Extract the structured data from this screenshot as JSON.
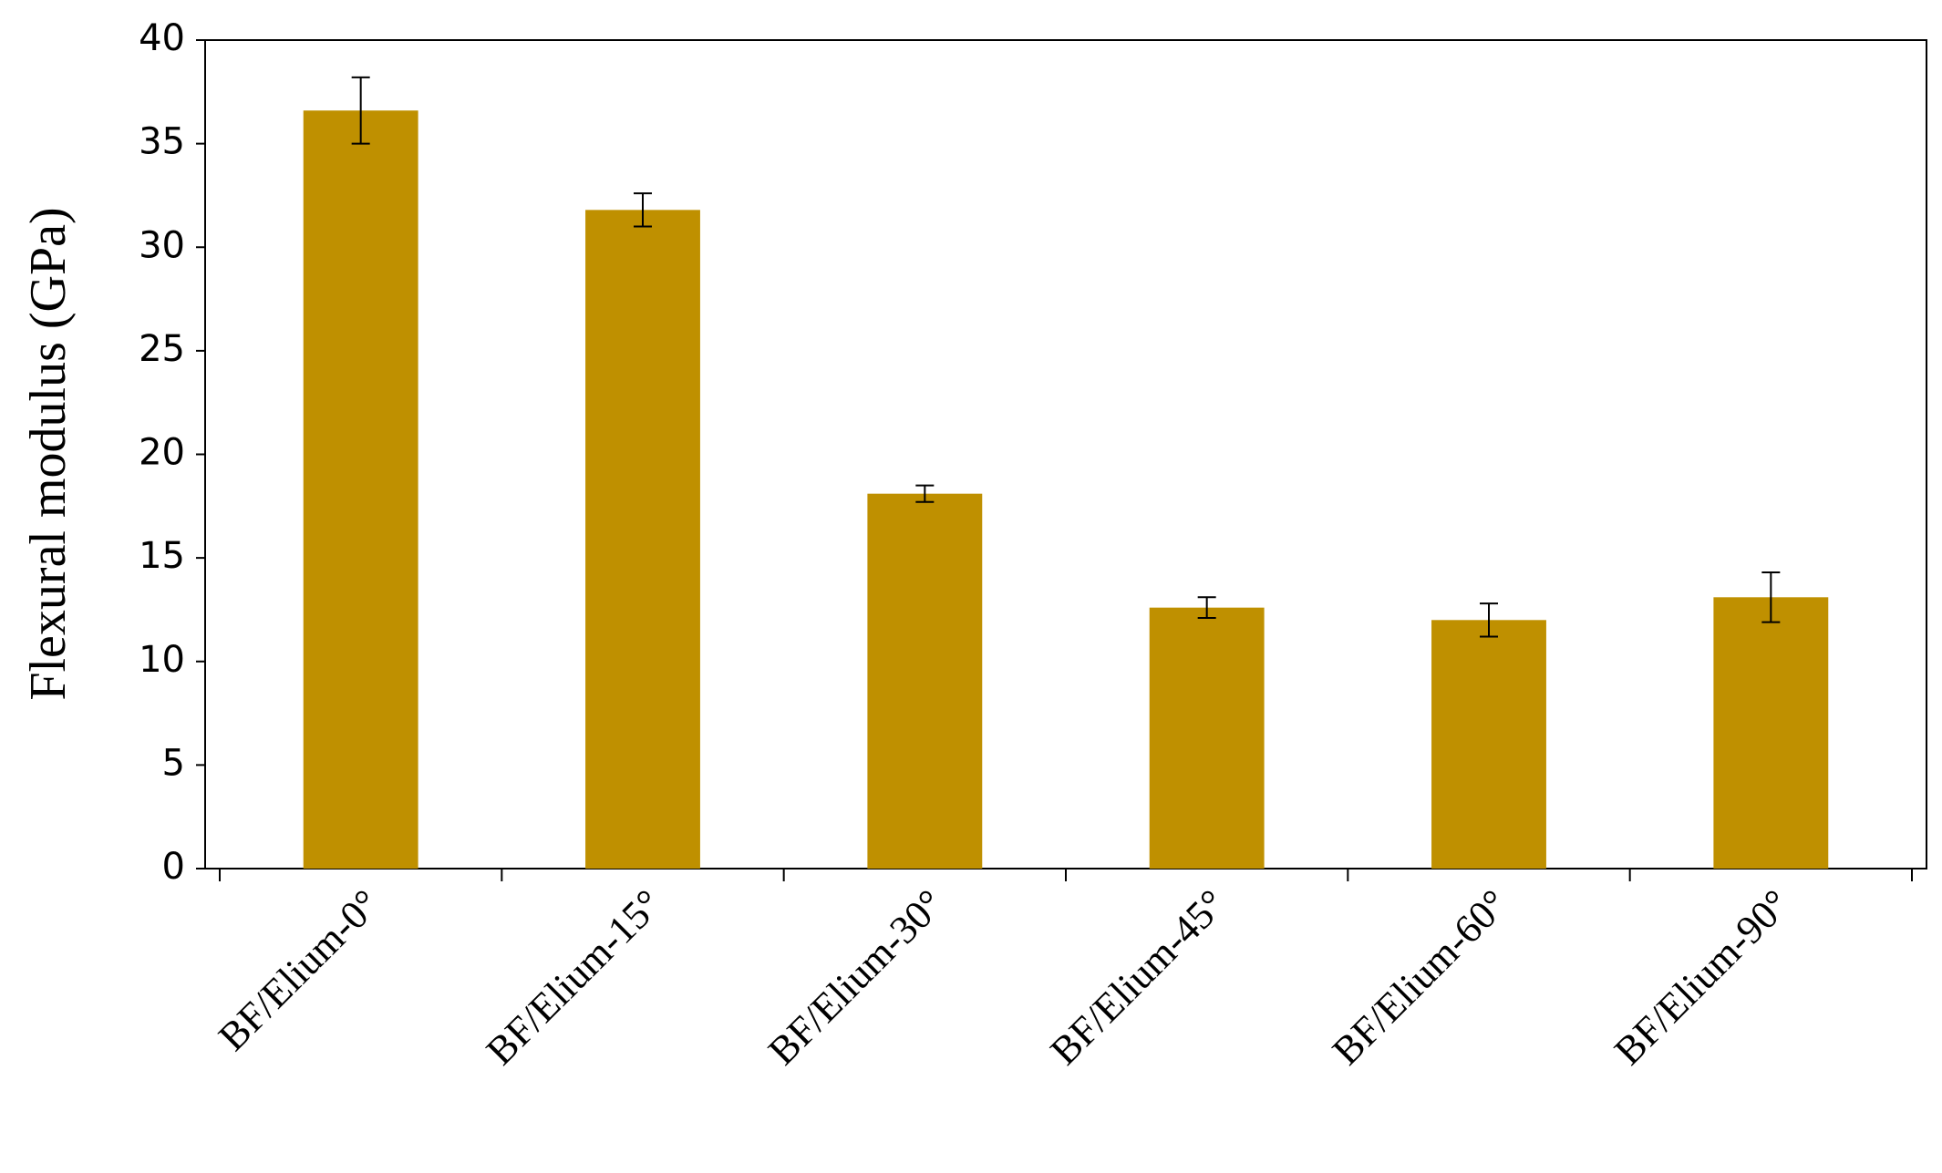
{
  "chart_data": {
    "type": "bar",
    "y_label": "Flexural modulus (GPa)",
    "categories": [
      "BF/Elium-0°",
      "BF/Elium-15°",
      "BF/Elium-30°",
      "BF/Elium-45°",
      "BF/Elium-60°",
      "BF/Elium-90°"
    ],
    "values": [
      36.6,
      31.8,
      18.1,
      12.6,
      12.0,
      13.1
    ],
    "errors": [
      1.6,
      0.8,
      0.4,
      0.5,
      0.8,
      1.2
    ],
    "color": "#bf9000",
    "ylim": [
      0,
      40
    ],
    "yticks": [
      0,
      5,
      10,
      15,
      20,
      25,
      30,
      35,
      40
    ],
    "grid": false
  }
}
